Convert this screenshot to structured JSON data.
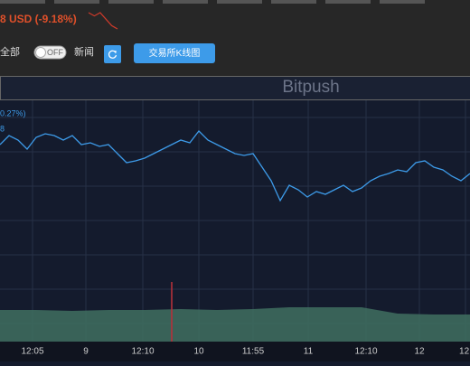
{
  "header": {
    "price": "8 USD (-9.18%)",
    "sparkline": [
      5,
      4,
      5,
      3,
      1,
      0
    ]
  },
  "toolbar": {
    "all": "全部",
    "toggle": "OFF",
    "news": "新闻",
    "kline_button": "交易所K线图"
  },
  "chart_data": {
    "type": "line",
    "watermark": "Bitpush",
    "legend_change": "0.27%)",
    "legend_value": "8",
    "color": "#3d9be9",
    "values": [
      160,
      170,
      165,
      155,
      168,
      172,
      170,
      165,
      170,
      160,
      162,
      158,
      160,
      150,
      140,
      142,
      145,
      150,
      155,
      160,
      165,
      162,
      175,
      165,
      160,
      155,
      150,
      148,
      150,
      135,
      120,
      98,
      115,
      110,
      102,
      108,
      105,
      110,
      115,
      108,
      112,
      120,
      125,
      128,
      132,
      130,
      140,
      142,
      135,
      132,
      125,
      120,
      128
    ],
    "ylim": [
      0,
      220
    ],
    "xlim": [
      0,
      52
    ],
    "xticks": [
      {
        "value": 3.6,
        "label": "12:05"
      },
      {
        "value": 9.5,
        "label": "9"
      },
      {
        "value": 15.8,
        "label": "12:10"
      },
      {
        "value": 22,
        "label": "10"
      },
      {
        "value": 28,
        "label": "11:55"
      },
      {
        "value": 34.1,
        "label": "11"
      },
      {
        "value": 40.5,
        "label": "12:10"
      },
      {
        "value": 46.4,
        "label": "12"
      },
      {
        "value": 51.5,
        "label": "12:"
      }
    ],
    "volume": {
      "color": "#3f6e60",
      "values": [
        35,
        35,
        34,
        35,
        35,
        36,
        35,
        36,
        38,
        38,
        38,
        31,
        30,
        30
      ],
      "step": 4,
      "ylim": [
        0,
        70
      ],
      "spike": {
        "x": 19,
        "value": 66,
        "color": "#b5303a"
      }
    }
  }
}
